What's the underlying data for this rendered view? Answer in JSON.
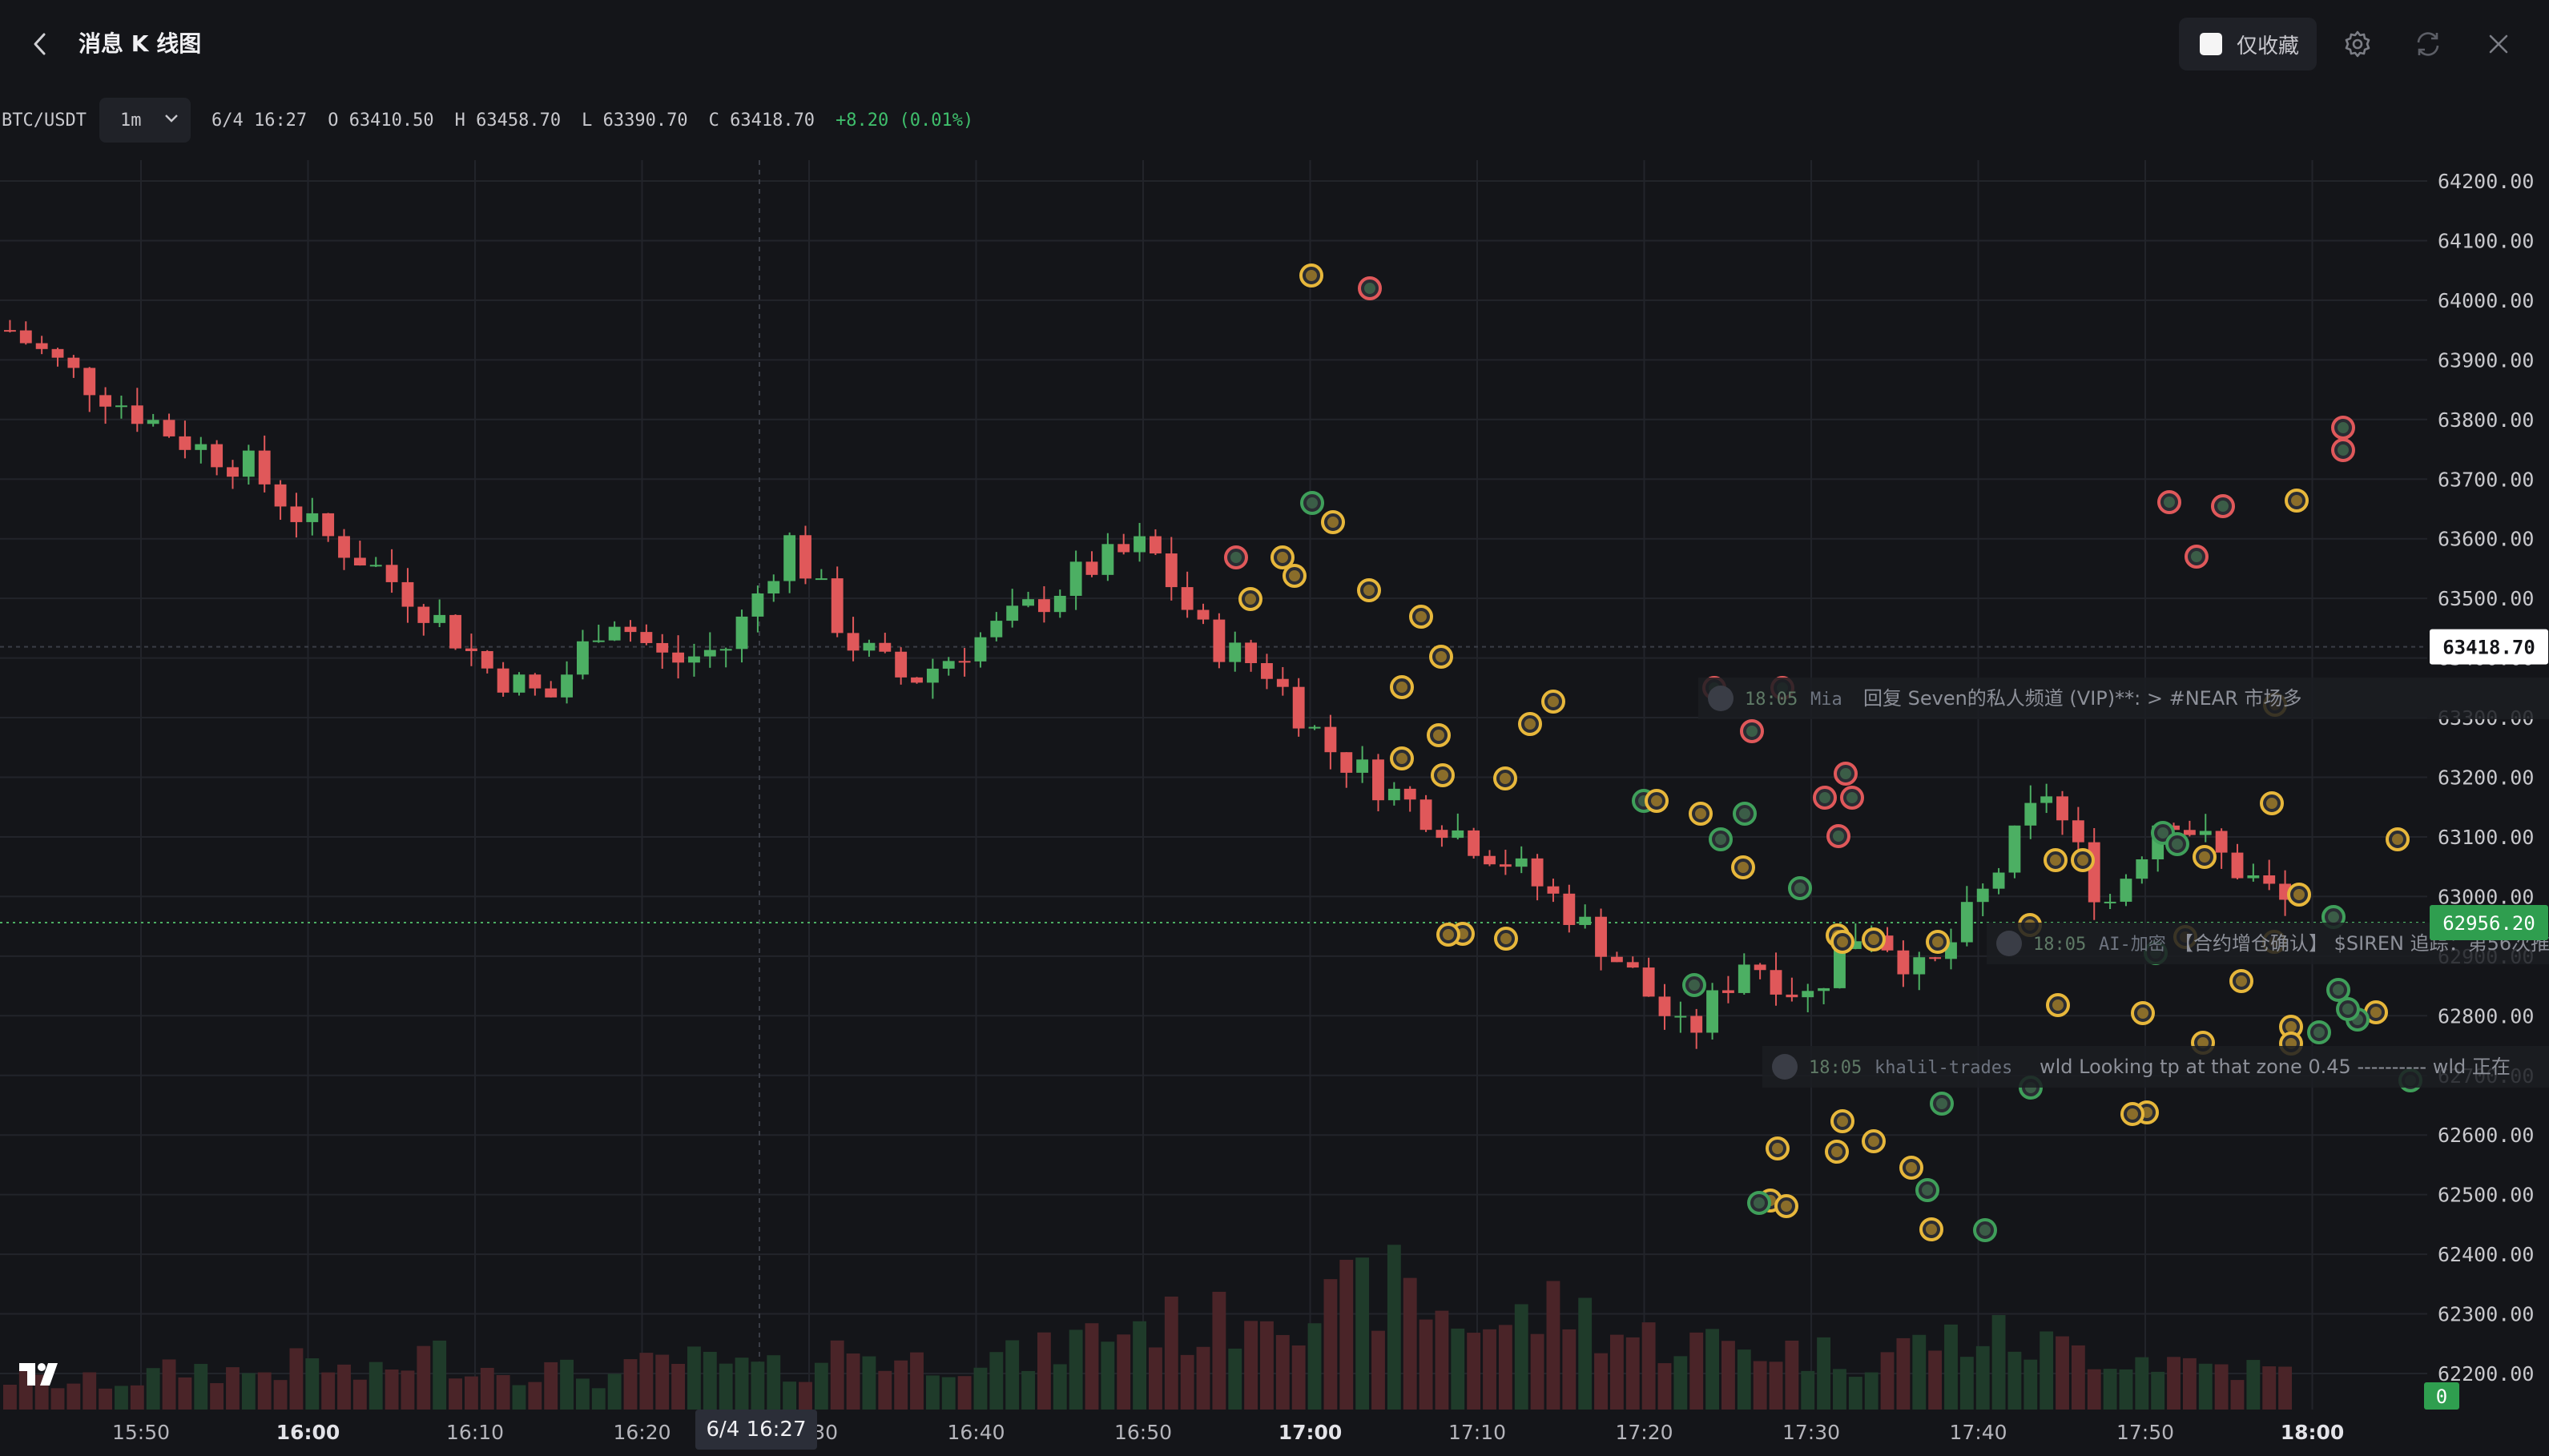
{
  "header": {
    "title": "消息 K 线图",
    "favorites_label": "仅收藏"
  },
  "infobar": {
    "symbol": "BTC/USDT",
    "interval": "1m",
    "time": "6/4 16:27",
    "open_key": "O",
    "open": "63410.50",
    "high_key": "H",
    "high": "63458.70",
    "low_key": "L",
    "low": "63390.70",
    "close_key": "C",
    "close": "63418.70",
    "change": "+8.20 (0.01%)"
  },
  "price_axis": {
    "ticks": [
      "64200.00",
      "64100.00",
      "64000.00",
      "63900.00",
      "63800.00",
      "63700.00",
      "63600.00",
      "63500.00",
      "63400.00",
      "63300.00",
      "63200.00",
      "63100.00",
      "63000.00",
      "62900.00",
      "62800.00",
      "62700.00",
      "62600.00",
      "62500.00",
      "62400.00",
      "62300.00",
      "62200.00"
    ],
    "last_price": "63418.70",
    "marker_price": "62956.20",
    "volume_label": "0"
  },
  "time_axis": {
    "ticks": [
      {
        "label": "15:50",
        "major": false
      },
      {
        "label": "16:00",
        "major": true
      },
      {
        "label": "16:10",
        "major": false
      },
      {
        "label": "16:20",
        "major": false
      },
      {
        "label": "16:30",
        "major": false
      },
      {
        "label": "16:40",
        "major": false
      },
      {
        "label": "16:50",
        "major": false
      },
      {
        "label": "17:00",
        "major": true
      },
      {
        "label": "17:10",
        "major": false
      },
      {
        "label": "17:20",
        "major": false
      },
      {
        "label": "17:30",
        "major": false
      },
      {
        "label": "17:40",
        "major": false
      },
      {
        "label": "17:50",
        "major": false
      },
      {
        "label": "18:00",
        "major": true
      }
    ],
    "crosshair_time": "6/4 16:27"
  },
  "colors": {
    "up": "#4caf63",
    "down": "#e0585a",
    "background": "#141519",
    "grid": "#22242a",
    "marker_gold": "#e7b73b",
    "marker_green": "#3f9f5a",
    "marker_red": "#e0585a"
  },
  "news_tags": [
    {
      "time": "18:05",
      "user": "Mia",
      "text": "回复 Seven的私人频道 (VIP)**: > #NEAR 市场多"
    },
    {
      "time": "18:05",
      "user": "AI-加密",
      "text": "【合约增仓确认】 $SIREN 追踪：第56次推"
    },
    {
      "time": "18:05",
      "user": "khalil-trades",
      "text": "wld Looking tp at that zone 0.45 ---------- wld 正在"
    }
  ],
  "icons": {
    "back": "chevron-left-icon",
    "settings": "gear-icon",
    "refresh": "refresh-icon",
    "close": "close-icon",
    "interval_dropdown": "chevron-down-icon",
    "logo": "tradingview-logo-icon"
  },
  "chart_data": {
    "type": "candlestick",
    "symbol": "BTC/USDT",
    "interval": "1m",
    "x": [
      "15:50",
      "16:00",
      "16:10",
      "16:20",
      "16:30",
      "16:40",
      "16:50",
      "17:00",
      "17:10",
      "17:20",
      "17:30",
      "17:40",
      "17:50",
      "18:00"
    ],
    "ylim": [
      62150,
      64250
    ],
    "close_series": [
      63950,
      63880,
      63820,
      63760,
      63720,
      63620,
      63560,
      63480,
      63380,
      63330,
      63480,
      63390,
      63420,
      63600,
      63430,
      63360,
      63420,
      63480,
      63550,
      63590,
      63430,
      63380,
      63250,
      63180,
      63120,
      63060,
      62980,
      62880,
      62760,
      62900,
      62830,
      62960,
      62860,
      63010,
      63180,
      62980,
      63150,
      63060,
      62990
    ],
    "volume_series": [
      30,
      25,
      28,
      40,
      35,
      45,
      30,
      55,
      40,
      38,
      30,
      48,
      42,
      36,
      60,
      45,
      52,
      48,
      70,
      85,
      75,
      110,
      95,
      120,
      90,
      80,
      100,
      70,
      65,
      60,
      55,
      50,
      65,
      70,
      60,
      55,
      48,
      42,
      35
    ],
    "last_price": 63418.7,
    "price_line": 62956.2
  }
}
